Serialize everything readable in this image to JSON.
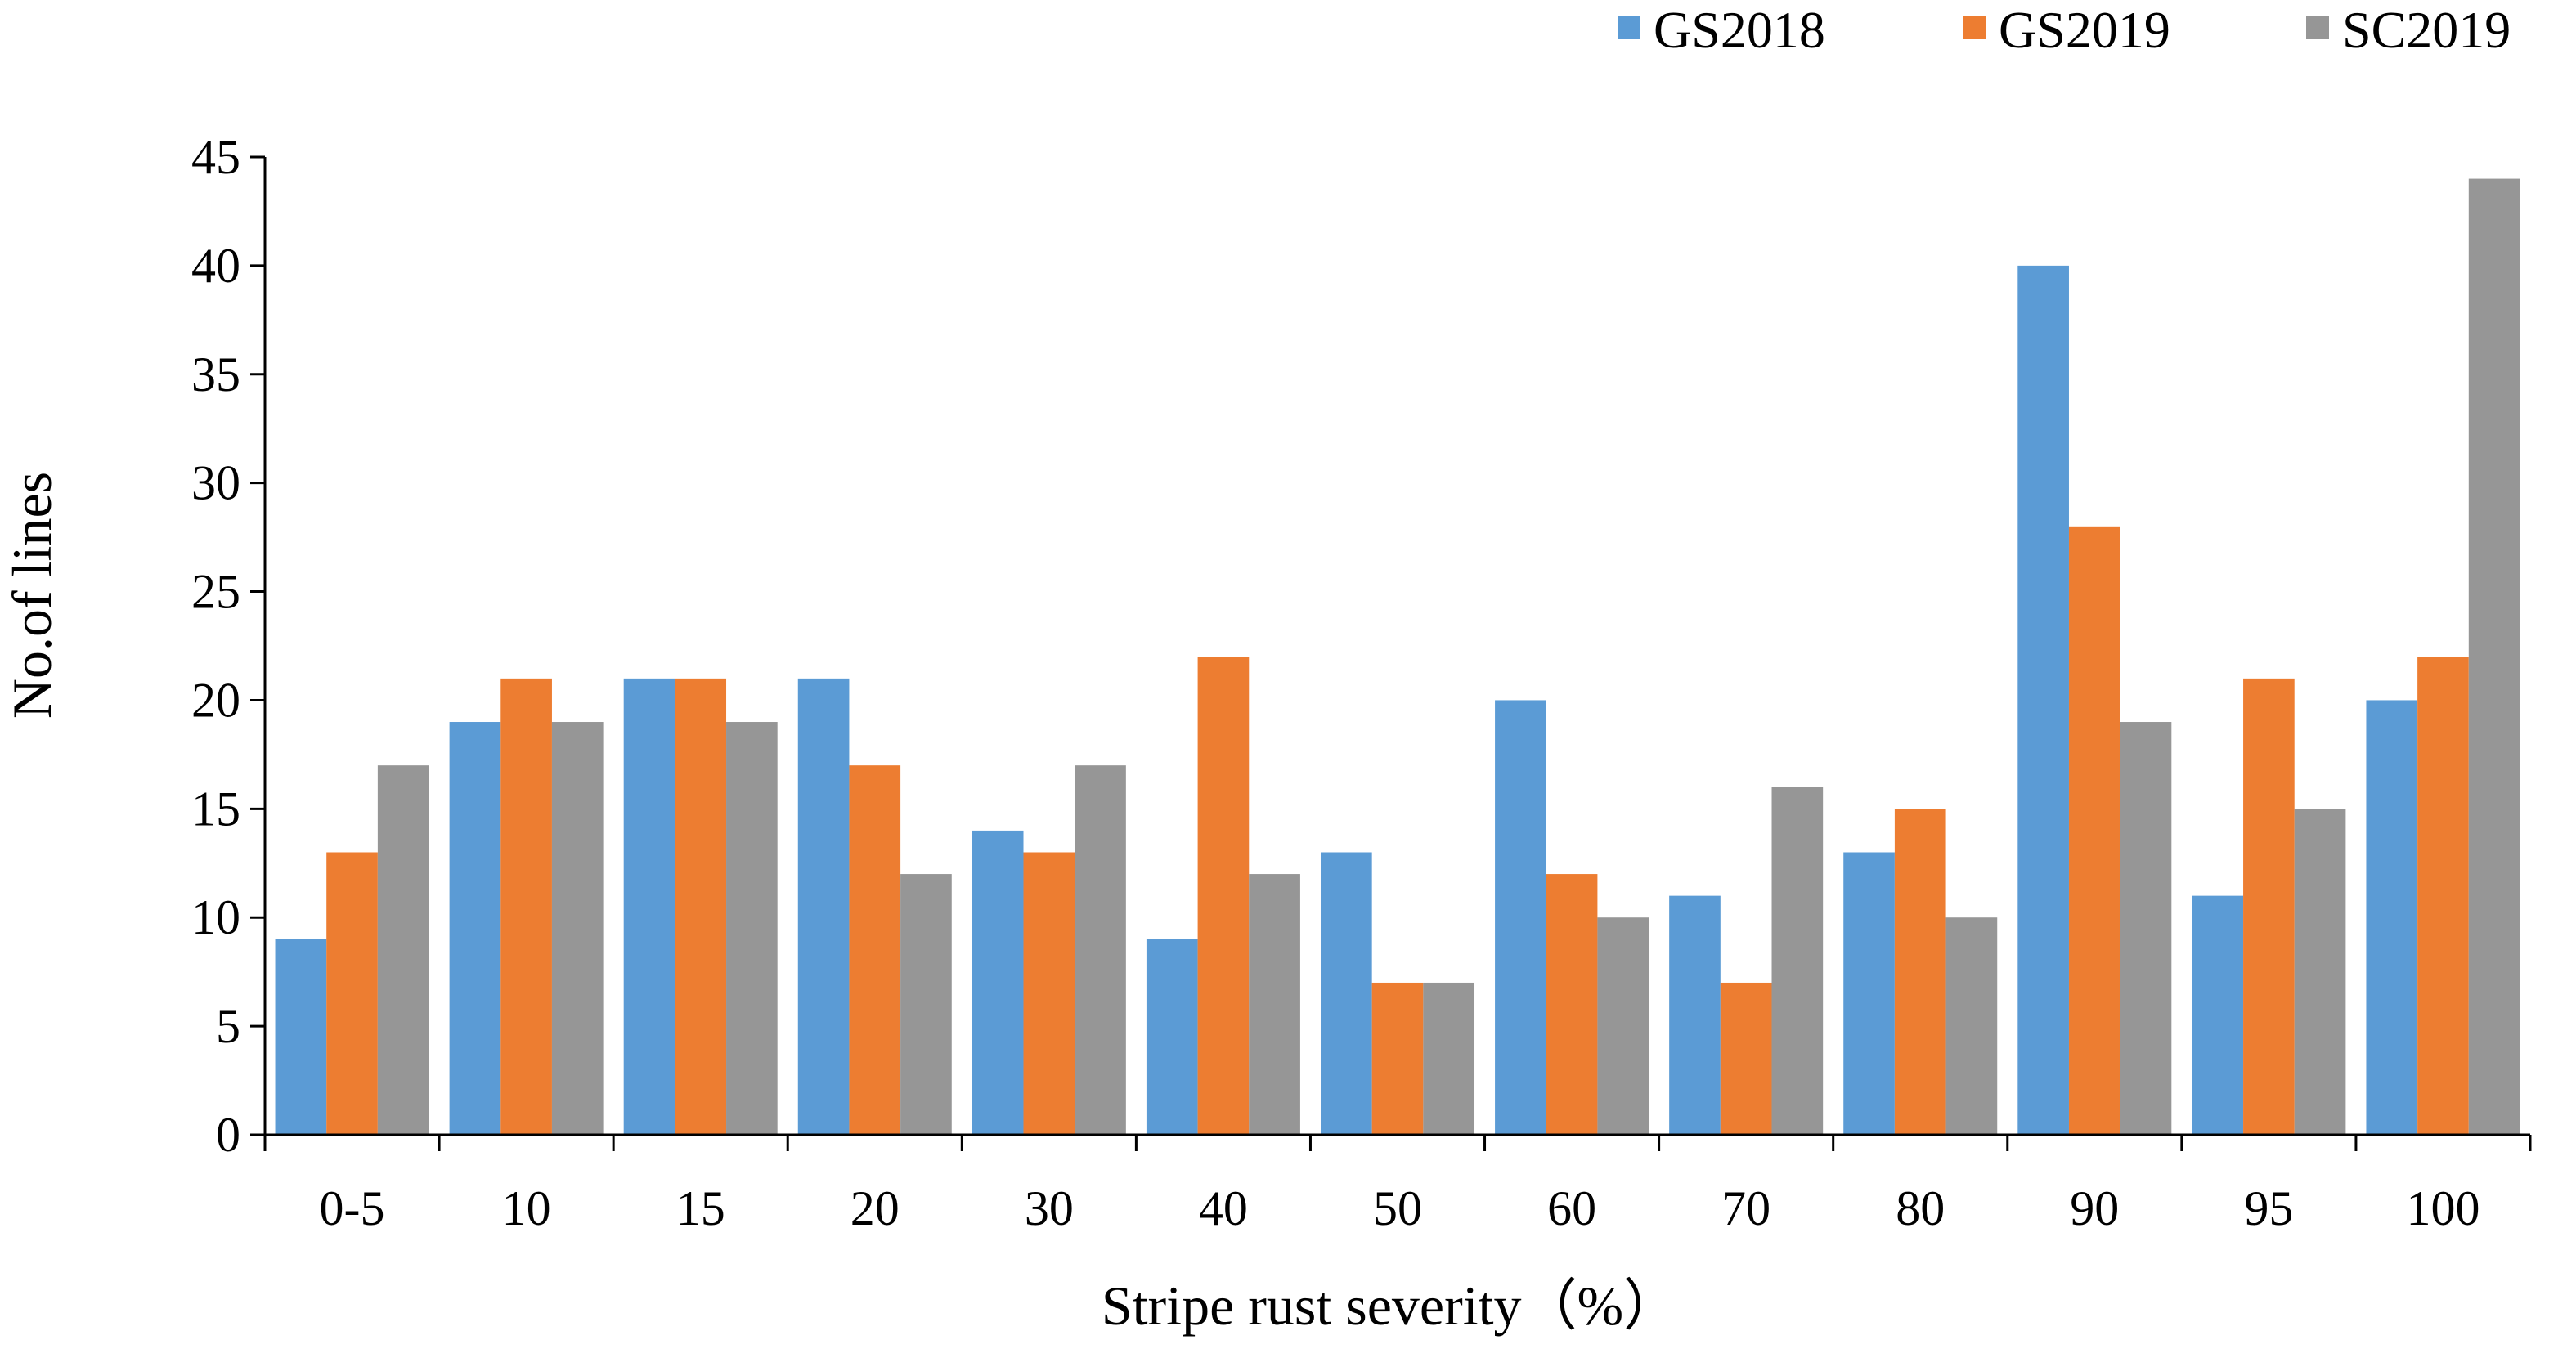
{
  "chart_data": {
    "type": "bar",
    "title": "",
    "xlabel": "Stripe rust severity（%）",
    "ylabel": "No.of lines",
    "ylim": [
      0,
      45
    ],
    "yticks": [
      0,
      5,
      10,
      15,
      20,
      25,
      30,
      35,
      40,
      45
    ],
    "categories": [
      "0-5",
      "10",
      "15",
      "20",
      "30",
      "40",
      "50",
      "60",
      "70",
      "80",
      "90",
      "95",
      "100"
    ],
    "series": [
      {
        "name": "GS2018",
        "color": "#5B9BD5",
        "values": [
          9,
          19,
          21,
          21,
          14,
          9,
          13,
          20,
          11,
          13,
          40,
          11,
          20
        ]
      },
      {
        "name": "GS2019",
        "color": "#ED7D31",
        "values": [
          13,
          21,
          21,
          17,
          13,
          22,
          7,
          12,
          7,
          15,
          28,
          21,
          22
        ]
      },
      {
        "name": "SC2019",
        "color": "#969696",
        "values": [
          17,
          19,
          19,
          12,
          17,
          12,
          7,
          10,
          16,
          10,
          19,
          15,
          44
        ]
      }
    ],
    "grid": false,
    "legend_position": "top-right"
  }
}
